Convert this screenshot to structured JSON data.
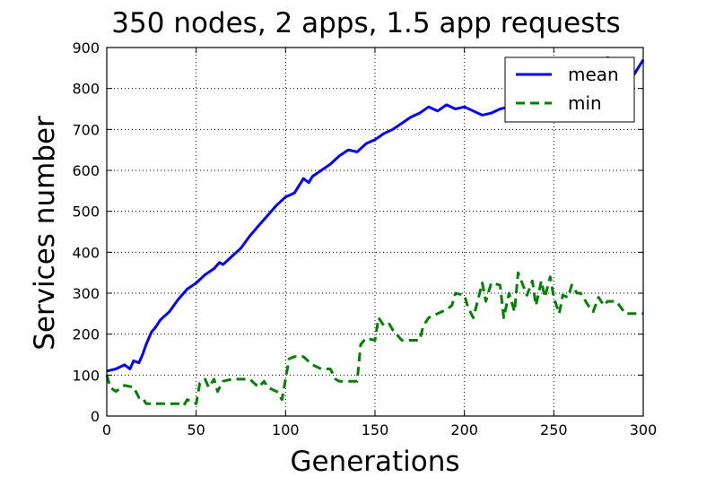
{
  "chart_data": {
    "type": "line",
    "title": "350 nodes, 2 apps, 1.5 app requests",
    "xlabel": "Generations",
    "ylabel": "Services number",
    "xlim": [
      0,
      300
    ],
    "ylim": [
      0,
      900
    ],
    "xticks": [
      0,
      50,
      100,
      150,
      200,
      250,
      300
    ],
    "yticks": [
      0,
      100,
      200,
      300,
      400,
      500,
      600,
      700,
      800,
      900
    ],
    "grid": true,
    "grid_style": "dotted",
    "legend_position": "top-right",
    "series": [
      {
        "name": "mean",
        "color": "#0000ff",
        "linestyle": "solid",
        "x": [
          0,
          5,
          10,
          13,
          15,
          18,
          20,
          22,
          25,
          27,
          30,
          35,
          40,
          45,
          50,
          55,
          60,
          63,
          65,
          70,
          75,
          80,
          85,
          90,
          95,
          100,
          105,
          110,
          113,
          115,
          120,
          125,
          130,
          135,
          140,
          145,
          150,
          155,
          160,
          165,
          170,
          175,
          180,
          185,
          190,
          195,
          200,
          205,
          210,
          215,
          220,
          225,
          230,
          235,
          240,
          245,
          250,
          255,
          260,
          265,
          270,
          275,
          280,
          285,
          290,
          295,
          300
        ],
        "y": [
          110,
          115,
          125,
          115,
          135,
          130,
          150,
          175,
          205,
          215,
          235,
          255,
          285,
          310,
          325,
          345,
          360,
          375,
          370,
          390,
          410,
          440,
          465,
          490,
          515,
          535,
          545,
          580,
          570,
          585,
          600,
          615,
          635,
          650,
          645,
          665,
          675,
          690,
          700,
          715,
          730,
          740,
          755,
          745,
          760,
          750,
          755,
          745,
          735,
          740,
          750,
          755,
          765,
          770,
          780,
          790,
          800,
          815,
          825,
          845,
          850,
          860,
          875,
          870,
          870,
          835,
          870
        ]
      },
      {
        "name": "min",
        "color": "#008000",
        "linestyle": "dashed",
        "x": [
          0,
          2,
          5,
          10,
          15,
          18,
          20,
          22,
          25,
          40,
          43,
          45,
          50,
          52,
          55,
          57,
          60,
          62,
          65,
          70,
          80,
          85,
          88,
          90,
          95,
          98,
          100,
          102,
          105,
          110,
          115,
          120,
          125,
          128,
          130,
          135,
          140,
          142,
          145,
          150,
          152,
          155,
          158,
          160,
          165,
          175,
          177,
          180,
          185,
          190,
          193,
          195,
          200,
          202,
          205,
          210,
          212,
          215,
          220,
          222,
          225,
          228,
          230,
          235,
          238,
          240,
          243,
          245,
          248,
          250,
          253,
          255,
          258,
          260,
          263,
          265,
          270,
          272,
          275,
          278,
          280,
          285,
          290,
          300
        ],
        "y": [
          100,
          70,
          60,
          75,
          70,
          45,
          45,
          30,
          30,
          30,
          25,
          40,
          30,
          80,
          90,
          70,
          90,
          60,
          85,
          90,
          90,
          70,
          85,
          70,
          60,
          40,
          90,
          140,
          145,
          145,
          125,
          115,
          115,
          90,
          85,
          85,
          85,
          175,
          190,
          185,
          240,
          220,
          225,
          210,
          185,
          185,
          220,
          240,
          250,
          260,
          270,
          300,
          295,
          265,
          240,
          325,
          280,
          325,
          320,
          240,
          300,
          255,
          350,
          295,
          330,
          270,
          330,
          290,
          340,
          290,
          250,
          295,
          290,
          320,
          300,
          300,
          265,
          255,
          290,
          270,
          280,
          280,
          250,
          250
        ]
      }
    ]
  }
}
